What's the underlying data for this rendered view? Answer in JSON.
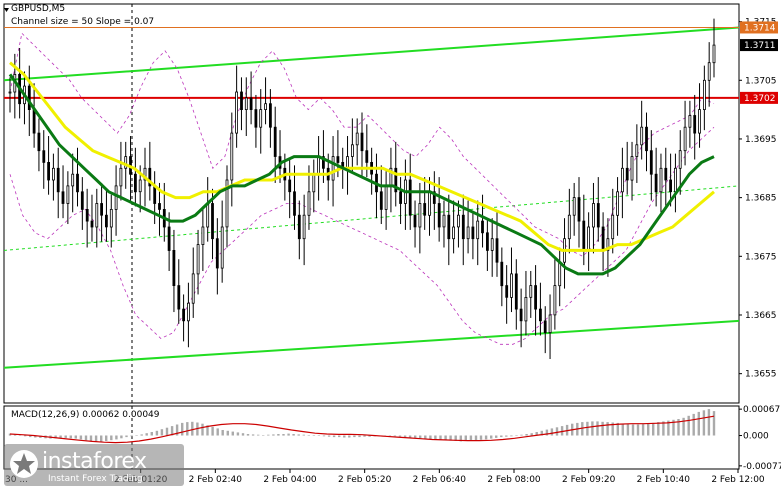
{
  "header": {
    "symbol": "GBPUSD,M5",
    "channel_info": "Channel size = 50 Slope = 0.07"
  },
  "macd_header": "MACD(12,26,9) 0.00062 0.00049",
  "watermark": {
    "brand": "instaforex",
    "tagline": "Instant Forex Trading"
  },
  "colors": {
    "candles": "#000000",
    "ma_fast": "#0a7a14",
    "ma_slow": "#f0f000",
    "channel": "#22dd22",
    "level_red": "#dd0000",
    "level_orange": "#e07020",
    "bands": "#bb33bb",
    "macd_hist": "#aaaaaa",
    "macd_signal": "#cc0000"
  },
  "chart_data": [
    {
      "type": "candlestick",
      "title": "GBPUSD,M5",
      "ylim": [
        1.365,
        1.3718
      ],
      "y_ticks": [
        "1.3715",
        "1.3705",
        "1.3695",
        "1.3685",
        "1.3675",
        "1.3665",
        "1.3655"
      ],
      "x_ticks": [
        "2 Feb 01:20",
        "2 Feb 02:40",
        "2 Feb 04:00",
        "2 Feb 05:20",
        "2 Feb 06:40",
        "2 Feb 08:00",
        "2 Feb 09:20",
        "2 Feb 10:40",
        "2 Feb 12:00"
      ],
      "x_tick_partial": "30 ...",
      "price_labels": [
        {
          "value": 1.3714,
          "text": "1.3714",
          "bg": "#e07020"
        },
        {
          "value": 1.3711,
          "text": "1.3711",
          "bg": "#000000"
        },
        {
          "value": 1.3702,
          "text": "1.3702",
          "bg": "#dd0000"
        }
      ],
      "horizontal_levels": [
        {
          "value": 1.3702,
          "color": "#dd0000"
        },
        {
          "value": 1.3714,
          "color": "#e07020"
        }
      ],
      "close_series": [
        1.3703,
        1.3706,
        1.3701,
        1.3704,
        1.37,
        1.3696,
        1.3693,
        1.3691,
        1.3688,
        1.369,
        1.3686,
        1.3684,
        1.3687,
        1.3689,
        1.3686,
        1.3683,
        1.3681,
        1.368,
        1.3684,
        1.3682,
        1.368,
        1.3683,
        1.3687,
        1.369,
        1.3692,
        1.3689,
        1.3686,
        1.3688,
        1.369,
        1.3687,
        1.3684,
        1.3683,
        1.368,
        1.3676,
        1.367,
        1.3666,
        1.3664,
        1.3667,
        1.3672,
        1.3677,
        1.368,
        1.3684,
        1.3678,
        1.3673,
        1.368,
        1.3688,
        1.3696,
        1.3703,
        1.37,
        1.3702,
        1.37,
        1.3697,
        1.37,
        1.3701,
        1.3697,
        1.3692,
        1.369,
        1.3688,
        1.3686,
        1.3682,
        1.3678,
        1.3682,
        1.3686,
        1.3689,
        1.3692,
        1.369,
        1.3688,
        1.3692,
        1.3691,
        1.369,
        1.3692,
        1.3694,
        1.3696,
        1.3693,
        1.3691,
        1.3689,
        1.3686,
        1.3683,
        1.3687,
        1.369,
        1.3686,
        1.3684,
        1.3688,
        1.3682,
        1.368,
        1.3684,
        1.3682,
        1.3686,
        1.3684,
        1.368,
        1.3682,
        1.3678,
        1.368,
        1.3682,
        1.3678,
        1.368,
        1.3678,
        1.3681,
        1.3679,
        1.3676,
        1.3678,
        1.3674,
        1.367,
        1.3668,
        1.3672,
        1.3666,
        1.3664,
        1.3668,
        1.367,
        1.3666,
        1.3664,
        1.3662,
        1.3665,
        1.367,
        1.3674,
        1.3678,
        1.3682,
        1.3685,
        1.3681,
        1.3676,
        1.368,
        1.3684,
        1.368,
        1.3676,
        1.3678,
        1.3682,
        1.3686,
        1.369,
        1.3688,
        1.3692,
        1.3694,
        1.3697,
        1.3693,
        1.3689,
        1.3686,
        1.369,
        1.3688,
        1.3686,
        1.369,
        1.3693,
        1.3697,
        1.3699,
        1.3696,
        1.37,
        1.3705,
        1.3708,
        1.3711
      ],
      "band_upper_series": [
        1.3703,
        1.3713,
        1.3711,
        1.3709,
        1.3707,
        1.3705,
        1.3702,
        1.37,
        1.3698,
        1.3696,
        1.3699,
        1.3704,
        1.3708,
        1.371,
        1.3707,
        1.3702,
        1.3696,
        1.369,
        1.3692,
        1.3699,
        1.3704,
        1.3708,
        1.371,
        1.3707,
        1.3702,
        1.37,
        1.3702,
        1.37,
        1.3697,
        1.3697,
        1.3699,
        1.3697,
        1.3695,
        1.3693,
        1.3692,
        1.3694,
        1.3697,
        1.3695,
        1.3692,
        1.369,
        1.3688,
        1.3686,
        1.3684,
        1.3682,
        1.368,
        1.3679,
        1.3678,
        1.3676,
        1.3675,
        1.3677,
        1.368,
        1.3685,
        1.369,
        1.3694,
        1.3696,
        1.3697,
        1.3698,
        1.3699,
        1.3702,
        1.3701
      ],
      "band_lower_series": [
        1.3689,
        1.3682,
        1.3679,
        1.3678,
        1.368,
        1.3682,
        1.3683,
        1.368,
        1.3676,
        1.367,
        1.3665,
        1.3663,
        1.3661,
        1.3662,
        1.3666,
        1.367,
        1.3674,
        1.3676,
        1.3678,
        1.368,
        1.3682,
        1.3683,
        1.3684,
        1.3684,
        1.3683,
        1.3682,
        1.3681,
        1.368,
        1.3679,
        1.3678,
        1.3677,
        1.3676,
        1.3674,
        1.3672,
        1.367,
        1.3667,
        1.3664,
        1.3662,
        1.3661,
        1.366,
        1.366,
        1.3661,
        1.3663,
        1.3665,
        1.3666,
        1.3668,
        1.367,
        1.3672,
        1.3674,
        1.3676,
        1.368,
        1.3684,
        1.3687,
        1.369,
        1.3693,
        1.3695,
        1.3697
      ],
      "ma_fast_series": [
        1.3706,
        1.3703,
        1.37,
        1.3697,
        1.3694,
        1.3692,
        1.369,
        1.3688,
        1.3686,
        1.3685,
        1.3684,
        1.3683,
        1.3682,
        1.3681,
        1.3681,
        1.3682,
        1.3684,
        1.3686,
        1.3687,
        1.3687,
        1.3688,
        1.3689,
        1.3691,
        1.3692,
        1.3692,
        1.3692,
        1.3691,
        1.369,
        1.3689,
        1.3688,
        1.3687,
        1.3687,
        1.3686,
        1.3686,
        1.3686,
        1.3685,
        1.3684,
        1.3683,
        1.3682,
        1.3681,
        1.368,
        1.3679,
        1.3678,
        1.3677,
        1.3675,
        1.3673,
        1.3672,
        1.3672,
        1.3672,
        1.3673,
        1.3675,
        1.3677,
        1.368,
        1.3683,
        1.3686,
        1.3689,
        1.3691,
        1.3692
      ],
      "ma_slow_series": [
        1.3708,
        1.3706,
        1.3703,
        1.37,
        1.3697,
        1.3695,
        1.3693,
        1.3692,
        1.3691,
        1.369,
        1.3688,
        1.3686,
        1.3685,
        1.3685,
        1.3686,
        1.3686,
        1.3687,
        1.3688,
        1.3688,
        1.3688,
        1.3689,
        1.3689,
        1.3689,
        1.3689,
        1.369,
        1.369,
        1.369,
        1.369,
        1.3689,
        1.3689,
        1.3688,
        1.3687,
        1.3686,
        1.3685,
        1.3684,
        1.3683,
        1.3682,
        1.3681,
        1.3679,
        1.3677,
        1.3676,
        1.3676,
        1.3676,
        1.3676,
        1.3677,
        1.3677,
        1.3678,
        1.3679,
        1.368,
        1.3682,
        1.3684,
        1.3686
      ],
      "channel_upper": [
        1.3705,
        1.3714
      ],
      "channel_lower": [
        1.3656,
        1.3664
      ],
      "channel_mid": [
        1.3676,
        1.3687
      ]
    },
    {
      "type": "bar",
      "title": "MACD(12,26,9) 0.00062 0.00049",
      "ylim": [
        -0.00085,
        0.00075
      ],
      "y_ticks": [
        "0.00067",
        "0.000",
        "-0.00077"
      ],
      "histogram": [
        5e-05,
        3e-05,
        1e-05,
        -2e-05,
        -4e-05,
        -5e-05,
        -6e-05,
        -7e-05,
        -8e-05,
        -7e-05,
        -6e-05,
        -6e-05,
        -7e-05,
        -8e-05,
        -0.0001,
        -0.00012,
        -0.00014,
        -0.00015,
        -0.00016,
        -0.00014,
        -0.00012,
        -0.0001,
        -7e-05,
        -4e-05,
        -2e-05,
        1e-05,
        3e-05,
        6e-05,
        9e-05,
        0.00012,
        0.00016,
        0.0002,
        0.00024,
        0.00028,
        0.00032,
        0.00034,
        0.00035,
        0.00033,
        0.0003,
        0.00026,
        0.00022,
        0.00018,
        0.00014,
        0.00012,
        0.0001,
        8e-05,
        6e-05,
        4e-05,
        3e-05,
        2e-05,
        1e-05,
        2e-05,
        3e-05,
        4e-05,
        4e-05,
        5e-05,
        4e-05,
        3e-05,
        2e-05,
        1e-05,
        0.0,
        -1e-05,
        -2e-05,
        -3e-05,
        -4e-05,
        -4e-05,
        -5e-05,
        -5e-05,
        -4e-05,
        -4e-05,
        -3e-05,
        -3e-05,
        -2e-05,
        -2e-05,
        -1e-05,
        -1e-05,
        -2e-05,
        -3e-05,
        -4e-05,
        -5e-05,
        -6e-05,
        -7e-05,
        -8e-05,
        -9e-05,
        -0.0001,
        -0.00011,
        -0.00012,
        -0.00013,
        -0.00014,
        -0.00015,
        -0.00014,
        -0.00013,
        -0.00012,
        -0.00011,
        -0.0001,
        -8e-05,
        -6e-05,
        -4e-05,
        -3e-05,
        -2e-05,
        0.0,
        2e-05,
        4e-05,
        6e-05,
        9e-05,
        0.00012,
        0.00015,
        0.00018,
        0.00021,
        0.00024,
        0.00027,
        0.0003,
        0.00032,
        0.00034,
        0.00035,
        0.00036,
        0.00036,
        0.00035,
        0.00034,
        0.00033,
        0.00032,
        0.0003,
        0.00029,
        0.00028,
        0.00028,
        0.00029,
        0.0003,
        0.00032,
        0.00034,
        0.00036,
        0.00038,
        0.0004,
        0.00042,
        0.00045,
        0.0005,
        0.00055,
        0.0006,
        0.00064,
        0.00067,
        0.00062
      ],
      "signal": [
        4e-05,
        2e-05,
        0.0,
        -3e-05,
        -6e-05,
        -9e-05,
        -0.00012,
        -0.00015,
        -0.00017,
        -0.00018,
        -0.00017,
        -0.00014,
        -9e-05,
        -3e-05,
        4e-05,
        0.00011,
        0.00018,
        0.00024,
        0.00028,
        0.0003,
        0.0003,
        0.00028,
        0.00024,
        0.00019,
        0.00014,
        0.0001,
        6e-05,
        4e-05,
        3e-05,
        3e-05,
        2e-05,
        0.0,
        -2e-05,
        -4e-05,
        -6e-05,
        -8e-05,
        -0.0001,
        -0.00011,
        -0.00012,
        -0.00013,
        -0.00013,
        -0.00012,
        -0.0001,
        -7e-05,
        -3e-05,
        1e-05,
        5e-05,
        0.0001,
        0.00015,
        0.0002,
        0.00024,
        0.00027,
        0.00029,
        0.0003,
        0.0003,
        0.00031,
        0.00032,
        0.00035,
        0.00039,
        0.00044,
        0.00049
      ]
    }
  ]
}
